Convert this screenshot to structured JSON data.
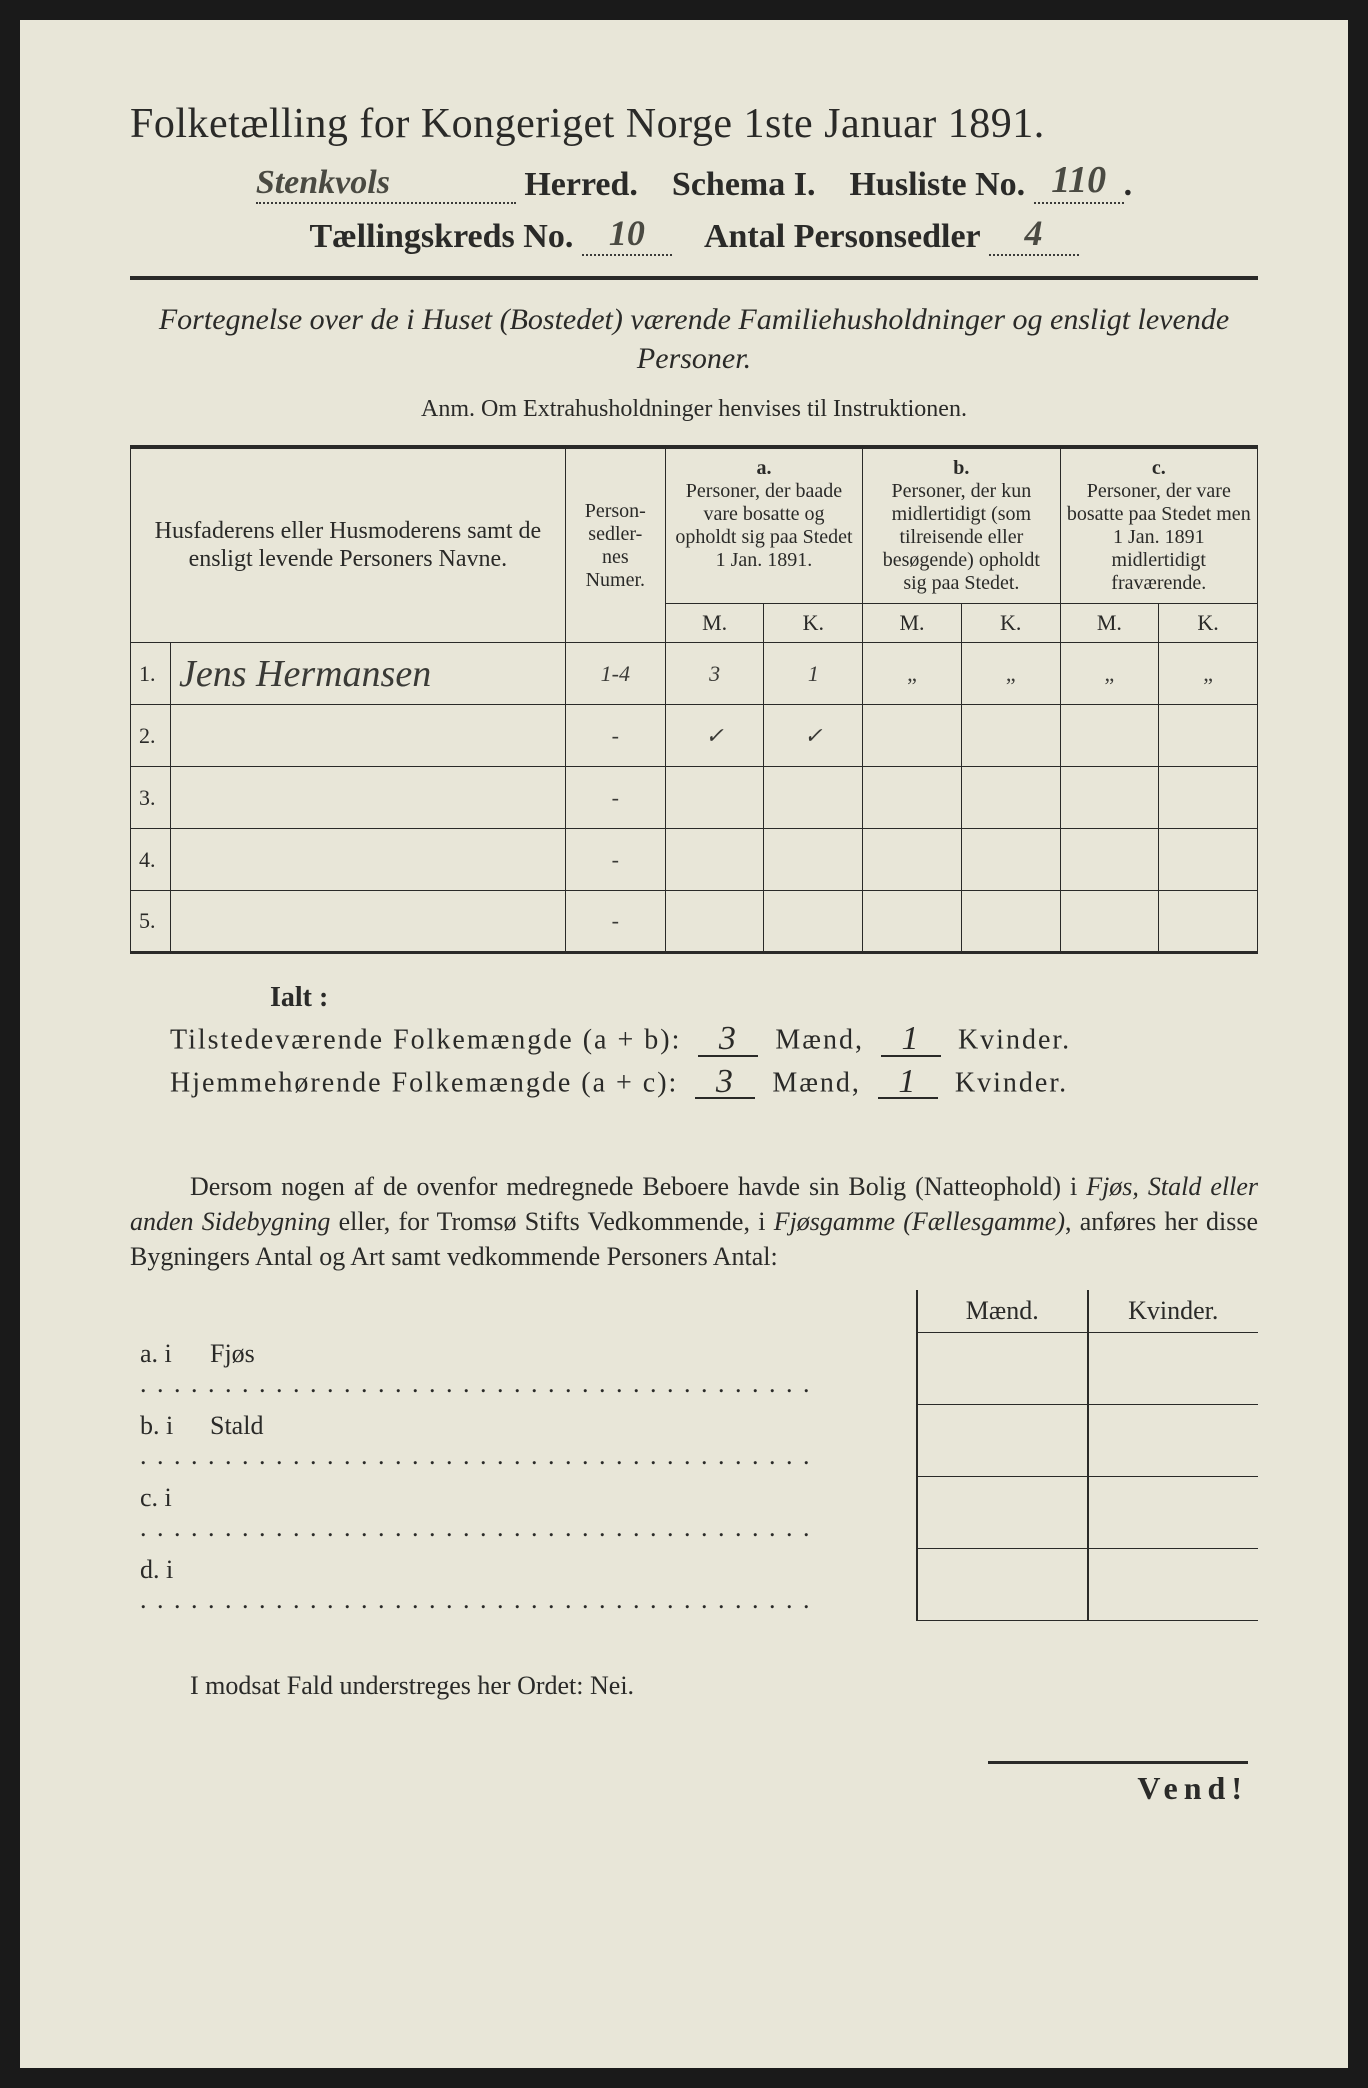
{
  "title": "Folketælling for Kongeriget Norge 1ste Januar 1891.",
  "herred_value": "Stenkvols",
  "labels": {
    "herred": "Herred.",
    "schema": "Schema I.",
    "husliste": "Husliste No.",
    "kreds": "Tællingskreds No.",
    "antal": "Antal Personsedler"
  },
  "husliste_no": "110",
  "kreds_no": "10",
  "personsedler": "4",
  "subtitle": "Fortegnelse over de i Huset (Bostedet) værende Familiehusholdninger og ensligt levende Personer.",
  "anm": "Anm. Om Extrahusholdninger henvises til Instruktionen.",
  "columns": {
    "names": "Husfaderens eller Husmoderens samt de ensligt levende Personers Navne.",
    "numer": "Person-\nsedler-\nnes\nNumer.",
    "a_label": "a.",
    "a_text": "Personer, der baade vare bosatte og opholdt sig paa Stedet 1 Jan. 1891.",
    "b_label": "b.",
    "b_text": "Personer, der kun midlertidigt (som tilreisende eller besøgende) opholdt sig paa Stedet.",
    "c_label": "c.",
    "c_text": "Personer, der vare bosatte paa Stedet men 1 Jan. 1891 midlertidigt fraværende.",
    "m": "M.",
    "k": "K."
  },
  "rows": [
    {
      "n": "1.",
      "name": "Jens Hermansen",
      "numer": "1-4",
      "aM": "3",
      "aK": "1",
      "bM": "„",
      "bK": "„",
      "cM": "„",
      "cK": "„"
    },
    {
      "n": "2.",
      "name": "",
      "numer": "-",
      "aM": "✓",
      "aK": "✓",
      "bM": "",
      "bK": "",
      "cM": "",
      "cK": ""
    },
    {
      "n": "3.",
      "name": "",
      "numer": "-",
      "aM": "",
      "aK": "",
      "bM": "",
      "bK": "",
      "cM": "",
      "cK": ""
    },
    {
      "n": "4.",
      "name": "",
      "numer": "-",
      "aM": "",
      "aK": "",
      "bM": "",
      "bK": "",
      "cM": "",
      "cK": ""
    },
    {
      "n": "5.",
      "name": "",
      "numer": "-",
      "aM": "",
      "aK": "",
      "bM": "",
      "bK": "",
      "cM": "",
      "cK": ""
    }
  ],
  "ialt": "Ialt :",
  "sum_ab_label": "Tilstedeværende Folkemængde (a + b):",
  "sum_ac_label": "Hjemmehørende Folkemængde (a + c):",
  "maend": "Mænd,",
  "kvinder": "Kvinder.",
  "sum_ab_m": "3",
  "sum_ab_k": "1",
  "sum_ac_m": "3",
  "sum_ac_k": "1",
  "paragraph_pre": "Dersom nogen af de ovenfor medregnede Beboere havde sin Bolig (Natteophold) i ",
  "paragraph_em1": "Fjøs, Stald eller anden Sidebygning",
  "paragraph_mid": " eller, for Tromsø Stifts Vedkommende, i ",
  "paragraph_em2": "Fjøsgamme",
  "paragraph_em2b": " (Fællesgamme)",
  "paragraph_post": ", anføres her disse Bygningers Antal og Art samt vedkommende Personers Antal:",
  "bld_header_m": "Mænd.",
  "bld_header_k": "Kvinder.",
  "bld_rows": [
    {
      "label": "a.  i",
      "name": "Fjøs"
    },
    {
      "label": "b.  i",
      "name": "Stald"
    },
    {
      "label": "c.  i",
      "name": ""
    },
    {
      "label": "d.  i",
      "name": ""
    }
  ],
  "nei_line_pre": "I modsat Fald understreges her Ordet: ",
  "nei": "Nei.",
  "vend": "Vend!"
}
